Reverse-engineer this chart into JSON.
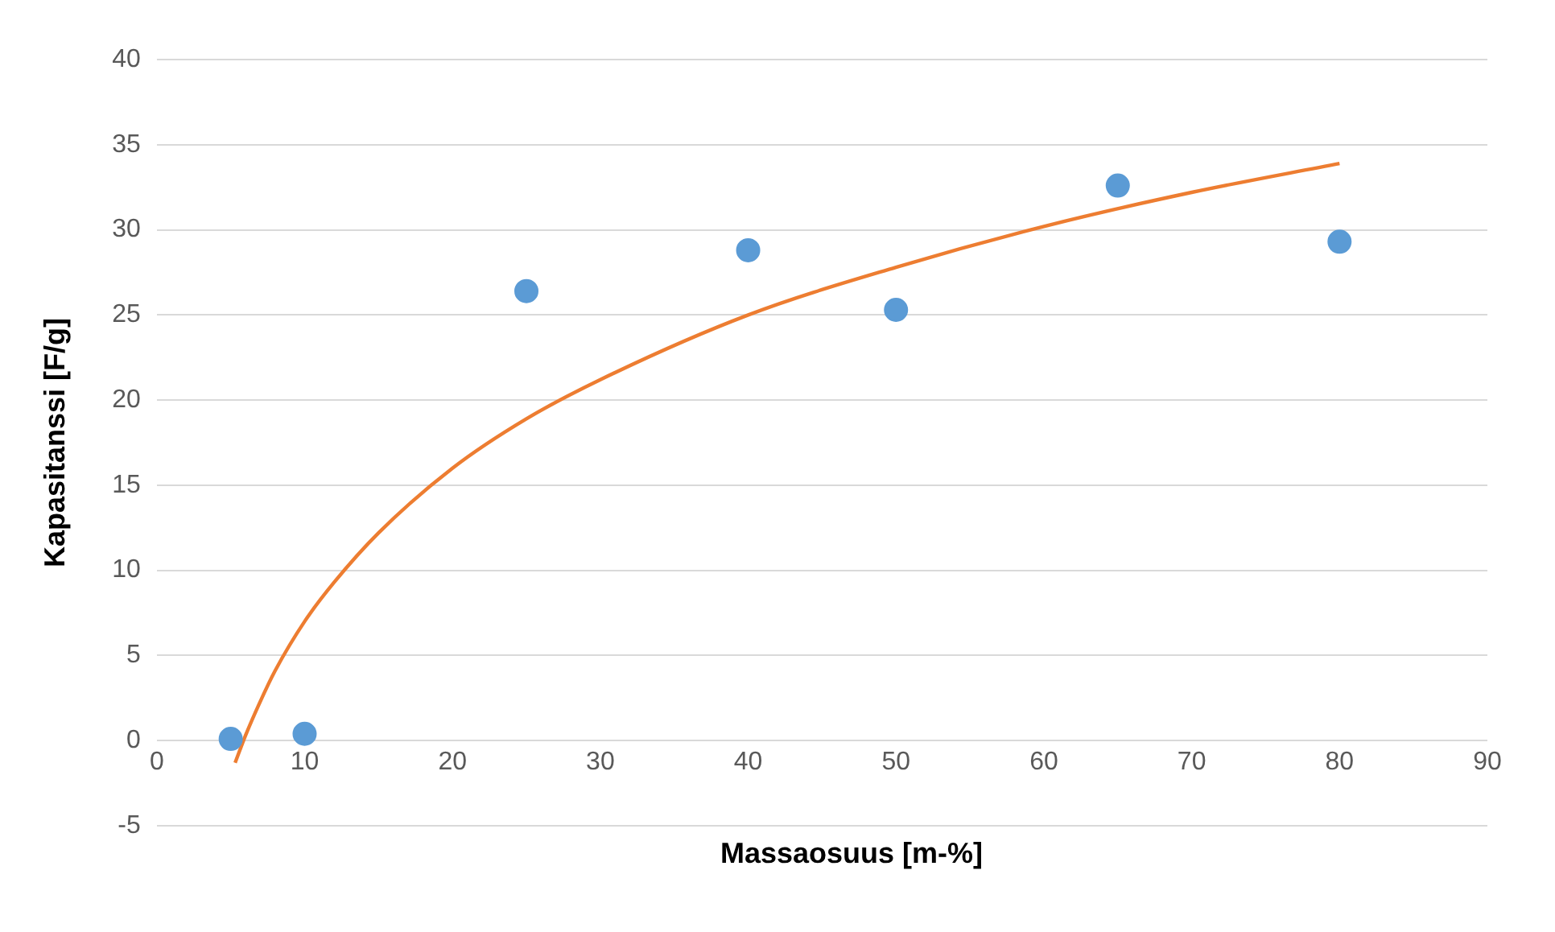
{
  "chart_data": {
    "type": "scatter",
    "xlabel": "Massaosuus [m-%]",
    "ylabel": "Kapasitanssi [F/g]",
    "xlim": [
      0,
      90
    ],
    "xticks": [
      0,
      10,
      20,
      30,
      40,
      50,
      60,
      70,
      80,
      90
    ],
    "ylim": [
      -5,
      40
    ],
    "yticks": [
      -5,
      0,
      5,
      10,
      15,
      20,
      25,
      30,
      35,
      40
    ],
    "grid": "y",
    "legend": false,
    "marker": "circle",
    "series": [
      {
        "color": "#5b9bd5",
        "x": [
          5,
          10,
          25,
          40,
          50,
          65,
          80
        ],
        "values": [
          0.1,
          0.4,
          26.4,
          28.8,
          25.3,
          32.6,
          29.3
        ]
      },
      {
        "type": "line",
        "color": "#ed7d31",
        "marker": "none",
        "line_style": "solid",
        "x": [
          5.3,
          6,
          7,
          8,
          10,
          12,
          15,
          20,
          25,
          30,
          40,
          50,
          60,
          70,
          80
        ],
        "values": [
          -1.3,
          0.3,
          2.3,
          4.1,
          7.0,
          9.3,
          12.2,
          16.0,
          18.9,
          21.2,
          25.0,
          27.8,
          30.2,
          32.2,
          33.9
        ]
      }
    ]
  }
}
